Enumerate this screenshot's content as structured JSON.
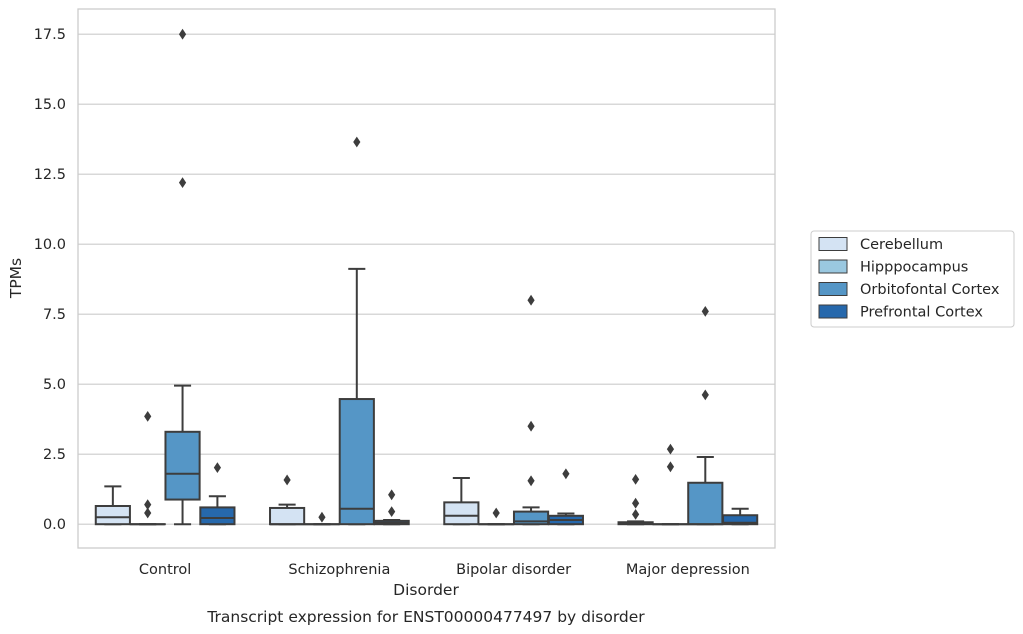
{
  "chart_data": {
    "type": "box",
    "title": "",
    "caption": "Transcript expression for ENST00000477497 by disorder",
    "xlabel": "Disorder",
    "ylabel": "TPMs",
    "ylim": [
      -0.85,
      18.4
    ],
    "yticks": [
      "0.0",
      "2.5",
      "5.0",
      "7.5",
      "10.0",
      "12.5",
      "15.0",
      "17.5"
    ],
    "ytick_values": [
      0,
      2.5,
      5,
      7.5,
      10,
      12.5,
      15,
      17.5
    ],
    "grid": "horizontal",
    "legend_position": "right",
    "categories": [
      "Control",
      "Schizophrenia",
      "Bipolar disorder",
      "Major depression"
    ],
    "series": [
      {
        "name": "Cerebellum",
        "color": "#d4e3f3",
        "boxes": [
          {
            "q1": 0,
            "median": 0.25,
            "q3": 0.65,
            "whisker_low": 0,
            "whisker_high": 1.35,
            "outliers": []
          },
          {
            "q1": 0,
            "median": 0,
            "q3": 0.58,
            "whisker_low": 0,
            "whisker_high": 0.7,
            "outliers": [
              1.58
            ]
          },
          {
            "q1": 0,
            "median": 0.3,
            "q3": 0.78,
            "whisker_low": 0,
            "whisker_high": 1.65,
            "outliers": []
          },
          {
            "q1": 0,
            "median": 0.02,
            "q3": 0.07,
            "whisker_low": 0,
            "whisker_high": 0.1,
            "outliers": [
              0.35,
              0.75,
              1.6
            ]
          }
        ]
      },
      {
        "name": "Hipppocampus",
        "color": "#9ac8e0",
        "boxes": [
          {
            "q1": 0,
            "median": 0,
            "q3": 0,
            "whisker_low": 0,
            "whisker_high": 0,
            "outliers": [
              0.4,
              0.7,
              3.85
            ]
          },
          {
            "q1": 0,
            "median": 0,
            "q3": 0,
            "whisker_low": 0,
            "whisker_high": 0,
            "outliers": [
              0.25
            ]
          },
          {
            "q1": 0,
            "median": 0,
            "q3": 0,
            "whisker_low": 0,
            "whisker_high": 0,
            "outliers": [
              0.4
            ]
          },
          {
            "q1": 0,
            "median": 0,
            "q3": 0,
            "whisker_low": 0,
            "whisker_high": 0,
            "outliers": [
              2.05,
              2.68
            ]
          }
        ]
      },
      {
        "name": "Orbitofontal Cortex",
        "color": "#5596c6",
        "boxes": [
          {
            "q1": 0.88,
            "median": 1.8,
            "q3": 3.3,
            "whisker_low": 0,
            "whisker_high": 4.95,
            "outliers": [
              12.2,
              17.5
            ]
          },
          {
            "q1": 0,
            "median": 0.55,
            "q3": 4.47,
            "whisker_low": 0,
            "whisker_high": 9.12,
            "outliers": [
              13.65
            ]
          },
          {
            "q1": 0,
            "median": 0.1,
            "q3": 0.45,
            "whisker_low": 0,
            "whisker_high": 0.6,
            "outliers": [
              1.55,
              3.5,
              8.0
            ]
          },
          {
            "q1": 0,
            "median": 0,
            "q3": 1.48,
            "whisker_low": 0,
            "whisker_high": 2.4,
            "outliers": [
              4.62,
              7.6
            ]
          }
        ]
      },
      {
        "name": "Prefrontal Cortex",
        "color": "#2668ac",
        "boxes": [
          {
            "q1": 0,
            "median": 0.22,
            "q3": 0.6,
            "whisker_low": 0,
            "whisker_high": 1.0,
            "outliers": [
              2.02
            ]
          },
          {
            "q1": 0,
            "median": 0.05,
            "q3": 0.12,
            "whisker_low": 0,
            "whisker_high": 0.15,
            "outliers": [
              0.45,
              1.05
            ]
          },
          {
            "q1": 0,
            "median": 0.15,
            "q3": 0.3,
            "whisker_low": 0,
            "whisker_high": 0.38,
            "outliers": [
              1.8
            ]
          },
          {
            "q1": 0,
            "median": 0.05,
            "q3": 0.32,
            "whisker_low": 0,
            "whisker_high": 0.55,
            "outliers": []
          }
        ]
      }
    ]
  }
}
